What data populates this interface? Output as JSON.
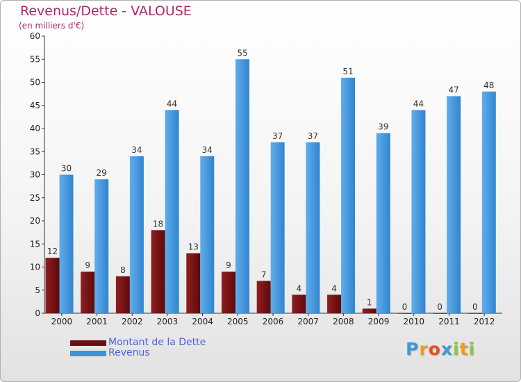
{
  "header": {
    "title": "Revenus/Dette - VALOUSE",
    "subtitle": "(en milliers d'€)"
  },
  "colors": {
    "dette": "#7a1515",
    "revenus": "#3d92d8",
    "title": "#a8276a",
    "legend_text": "#4a63d6"
  },
  "chart_data": {
    "type": "bar",
    "title": "Revenus/Dette - VALOUSE",
    "subtitle": "(en milliers d'€)",
    "categories": [
      "2000",
      "2001",
      "2002",
      "2003",
      "2004",
      "2005",
      "2006",
      "2007",
      "2008",
      "2009",
      "2010",
      "2011",
      "2012"
    ],
    "series": [
      {
        "name": "Montant de la Dette",
        "values": [
          12,
          9,
          8,
          18,
          13,
          9,
          7,
          4,
          4,
          1,
          0,
          0,
          0
        ]
      },
      {
        "name": "Revenus",
        "values": [
          30,
          29,
          34,
          44,
          34,
          55,
          37,
          37,
          51,
          39,
          44,
          47,
          48
        ]
      }
    ],
    "ylim": [
      0,
      60
    ],
    "yticks": [
      0,
      5,
      10,
      15,
      20,
      25,
      30,
      35,
      40,
      45,
      50,
      55,
      60
    ],
    "grid": false,
    "legend": "bottom-left"
  },
  "legend": {
    "items": [
      {
        "label": "Montant de la Dette",
        "color": "#6b0f0f"
      },
      {
        "label": "Revenus",
        "color": "#3d92d8"
      }
    ]
  },
  "logo": {
    "letters": [
      "P",
      "r",
      "o",
      "x",
      "i",
      "t",
      "i"
    ],
    "colors": [
      "#3d9ad6",
      "#f29a1f",
      "#e84f1c",
      "#3d9ad6",
      "#8dc641",
      "#f29a1f",
      "#8dc641"
    ]
  }
}
